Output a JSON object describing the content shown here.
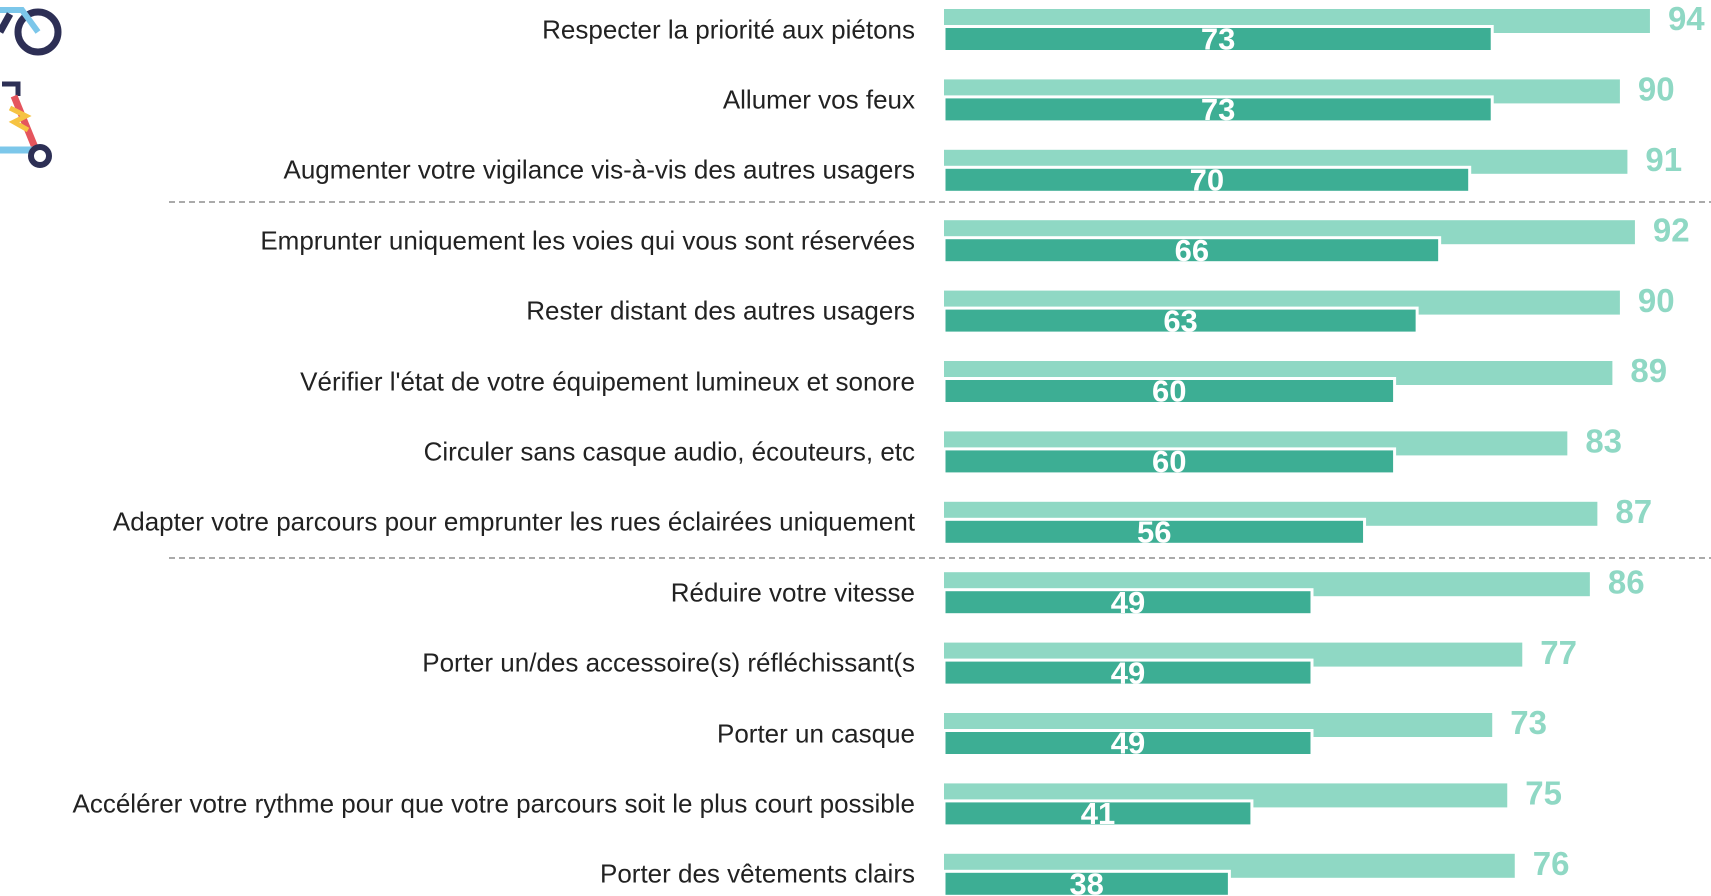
{
  "chart_data": {
    "type": "bar",
    "orientation": "horizontal",
    "categories": [
      "Respecter la priorité aux piétons",
      "Allumer vos feux",
      "Augmenter votre vigilance vis-à-vis des autres usagers",
      "Emprunter uniquement les voies qui vous sont réservées",
      "Rester distant des autres usagers",
      "Vérifier l'état de votre équipement lumineux et sonore",
      "Circuler sans casque audio, écouteurs, etc",
      "Adapter votre parcours pour emprunter les rues éclairées uniquement",
      "Réduire votre vitesse",
      "Porter un/des accessoire(s) réfléchissant(s",
      "Porter un casque",
      "Accélérer votre rythme pour que votre parcours soit le plus court possible",
      "Porter des vêtements clairs"
    ],
    "series": [
      {
        "color": "#8fd8c4",
        "values": [
          94,
          90,
          91,
          92,
          90,
          89,
          83,
          87,
          86,
          77,
          73,
          75,
          76
        ]
      },
      {
        "color": "#3dae94",
        "values": [
          73,
          73,
          70,
          66,
          63,
          60,
          60,
          56,
          49,
          49,
          49,
          41,
          38
        ]
      }
    ],
    "xlim": [
      0,
      100
    ]
  }
}
